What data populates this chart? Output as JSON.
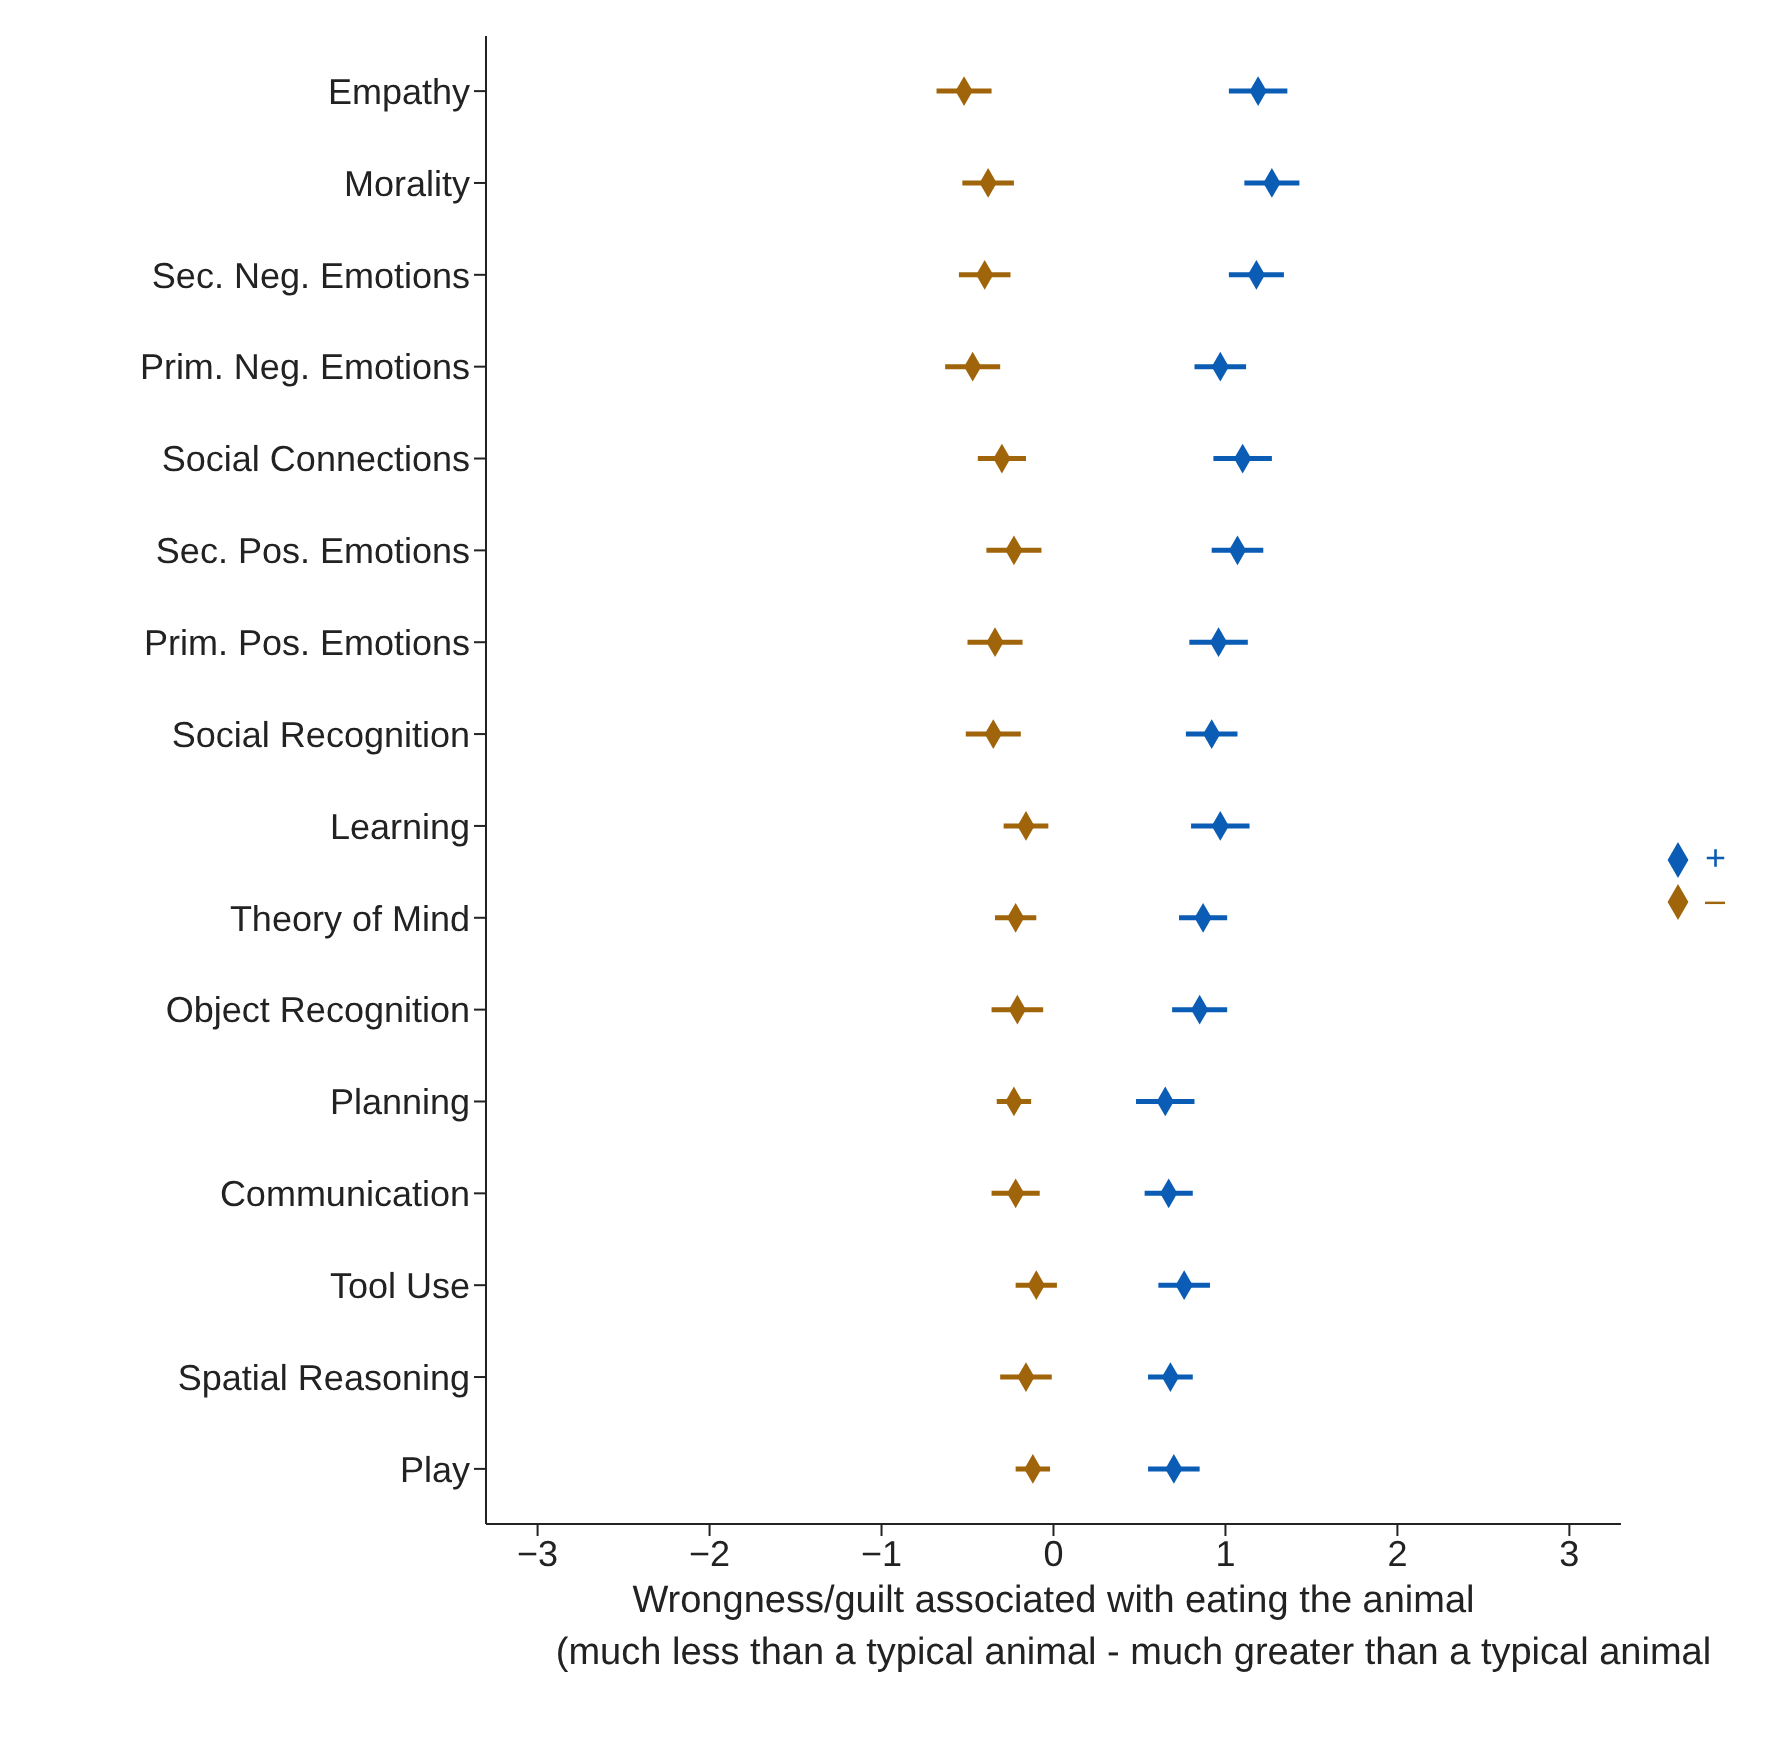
{
  "chart_data": {
    "type": "scatter",
    "categories": [
      "Empathy",
      "Morality",
      "Sec. Neg. Emotions",
      "Prim. Neg. Emotions",
      "Social Connections",
      "Sec. Pos. Emotions",
      "Prim. Pos. Emotions",
      "Social Recognition",
      "Learning",
      "Theory of Mind",
      "Object Recognition",
      "Planning",
      "Communication",
      "Tool Use",
      "Spatial Reasoning",
      "Play"
    ],
    "orientation": "horizontal",
    "series": [
      {
        "name": "–",
        "color": "#a0650a",
        "values": [
          -0.52,
          -0.38,
          -0.4,
          -0.47,
          -0.3,
          -0.23,
          -0.34,
          -0.35,
          -0.16,
          -0.22,
          -0.21,
          -0.23,
          -0.22,
          -0.1,
          -0.16,
          -0.12
        ],
        "errors": [
          0.16,
          0.15,
          0.15,
          0.16,
          0.14,
          0.16,
          0.16,
          0.16,
          0.13,
          0.12,
          0.15,
          0.1,
          0.14,
          0.12,
          0.15,
          0.1
        ]
      },
      {
        "name": "+",
        "color": "#0a5cb4",
        "values": [
          1.19,
          1.27,
          1.18,
          0.97,
          1.1,
          1.07,
          0.96,
          0.92,
          0.97,
          0.87,
          0.85,
          0.65,
          0.67,
          0.76,
          0.68,
          0.7
        ],
        "errors": [
          0.17,
          0.16,
          0.16,
          0.15,
          0.17,
          0.15,
          0.17,
          0.15,
          0.17,
          0.14,
          0.16,
          0.17,
          0.14,
          0.15,
          0.13,
          0.15
        ]
      }
    ],
    "xlim": [
      -3.3,
      3.3
    ],
    "xticks": [
      {
        "value": -3,
        "label": "−3"
      },
      {
        "value": -2,
        "label": "−2"
      },
      {
        "value": -1,
        "label": "−1"
      },
      0,
      1,
      2,
      3
    ],
    "xlabel": "Wrongness/guilt associated with eating the animal\n(much less than a typical animal - much greater than a typical animal",
    "marker": "diamond",
    "legend": "right",
    "grid": false
  }
}
